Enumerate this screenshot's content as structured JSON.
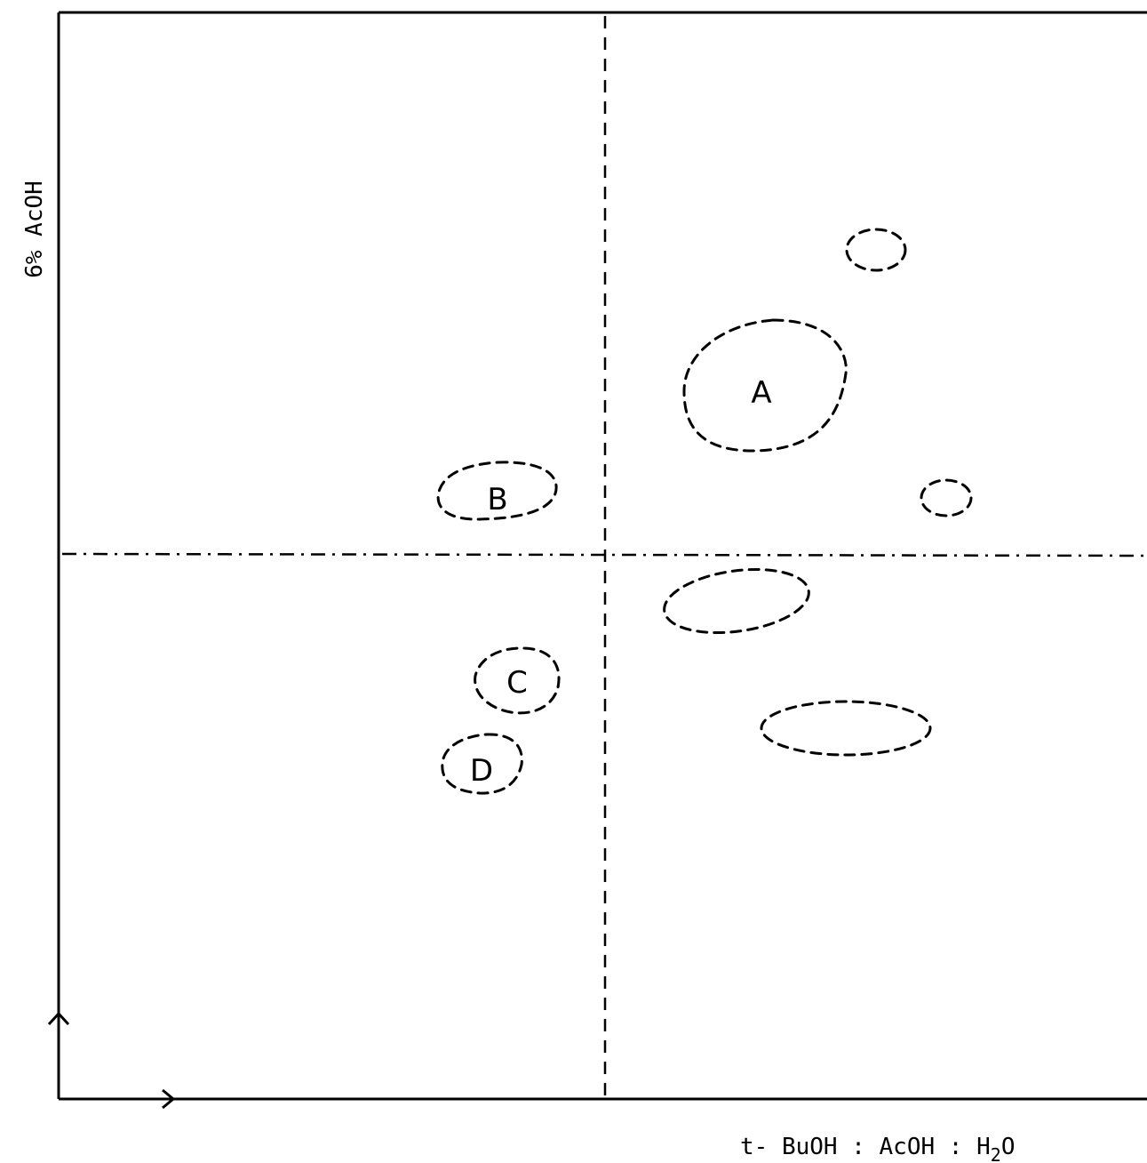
{
  "figure": {
    "x_axis_label_main": "t- BuOH : AcOH : H",
    "x_axis_label_sub": "2",
    "x_axis_label_tail": "O",
    "y_axis_label": "6% AcOH",
    "spots": [
      {
        "id": "A",
        "label": "A"
      },
      {
        "id": "B",
        "label": "B"
      },
      {
        "id": "C",
        "label": "C"
      },
      {
        "id": "D",
        "label": "D"
      }
    ]
  }
}
